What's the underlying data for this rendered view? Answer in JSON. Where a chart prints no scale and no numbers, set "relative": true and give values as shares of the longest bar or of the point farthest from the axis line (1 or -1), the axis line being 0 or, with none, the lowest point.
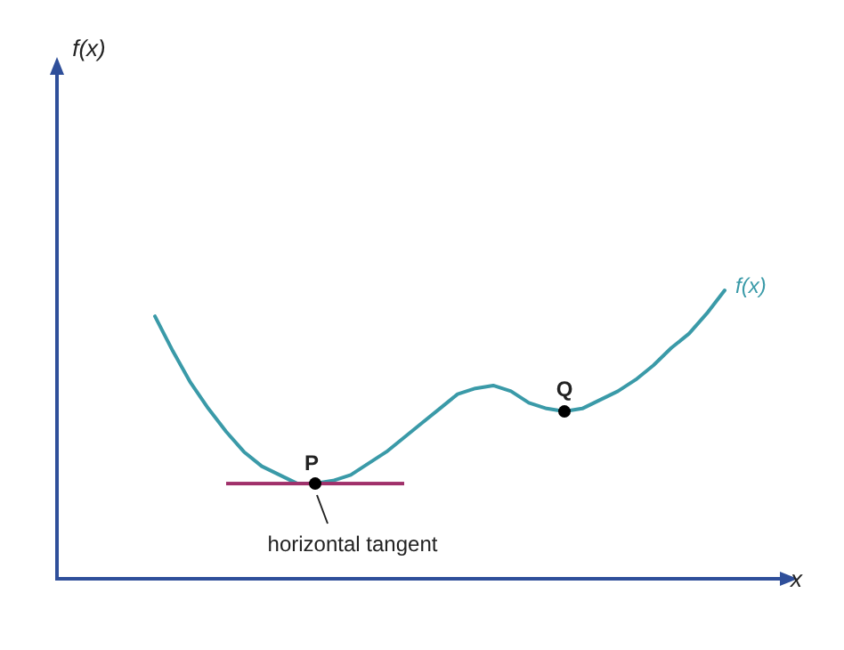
{
  "chart_data": {
    "type": "line",
    "relative": true,
    "xlabel": "x",
    "grid": false,
    "legend": false,
    "marker": "none",
    "line_style": "solid",
    "categories": [
      null,
      null,
      null,
      null,
      null,
      null,
      null,
      null,
      null,
      null,
      null,
      null,
      null,
      null,
      null,
      null,
      null,
      null,
      null,
      null,
      null,
      null,
      null,
      null,
      null,
      null,
      null,
      null,
      null,
      null,
      null,
      null,
      null
    ],
    "series": [
      {
        "name": "f(x)",
        "color": "#3a9aa8",
        "values": [
          0.91,
          0.79,
          0.68,
          0.59,
          0.51,
          0.44,
          0.39,
          0.36,
          0.33,
          0.33,
          0.34,
          0.36,
          0.4,
          0.44,
          0.49,
          0.54,
          0.59,
          0.64,
          0.66,
          0.67,
          0.65,
          0.61,
          0.59,
          0.58,
          0.59,
          0.62,
          0.65,
          0.69,
          0.74,
          0.8,
          0.85,
          0.92,
          1
        ]
      }
    ],
    "annotations": [
      "f(x)",
      "P",
      "Q",
      "horizontal tangent"
    ]
  }
}
